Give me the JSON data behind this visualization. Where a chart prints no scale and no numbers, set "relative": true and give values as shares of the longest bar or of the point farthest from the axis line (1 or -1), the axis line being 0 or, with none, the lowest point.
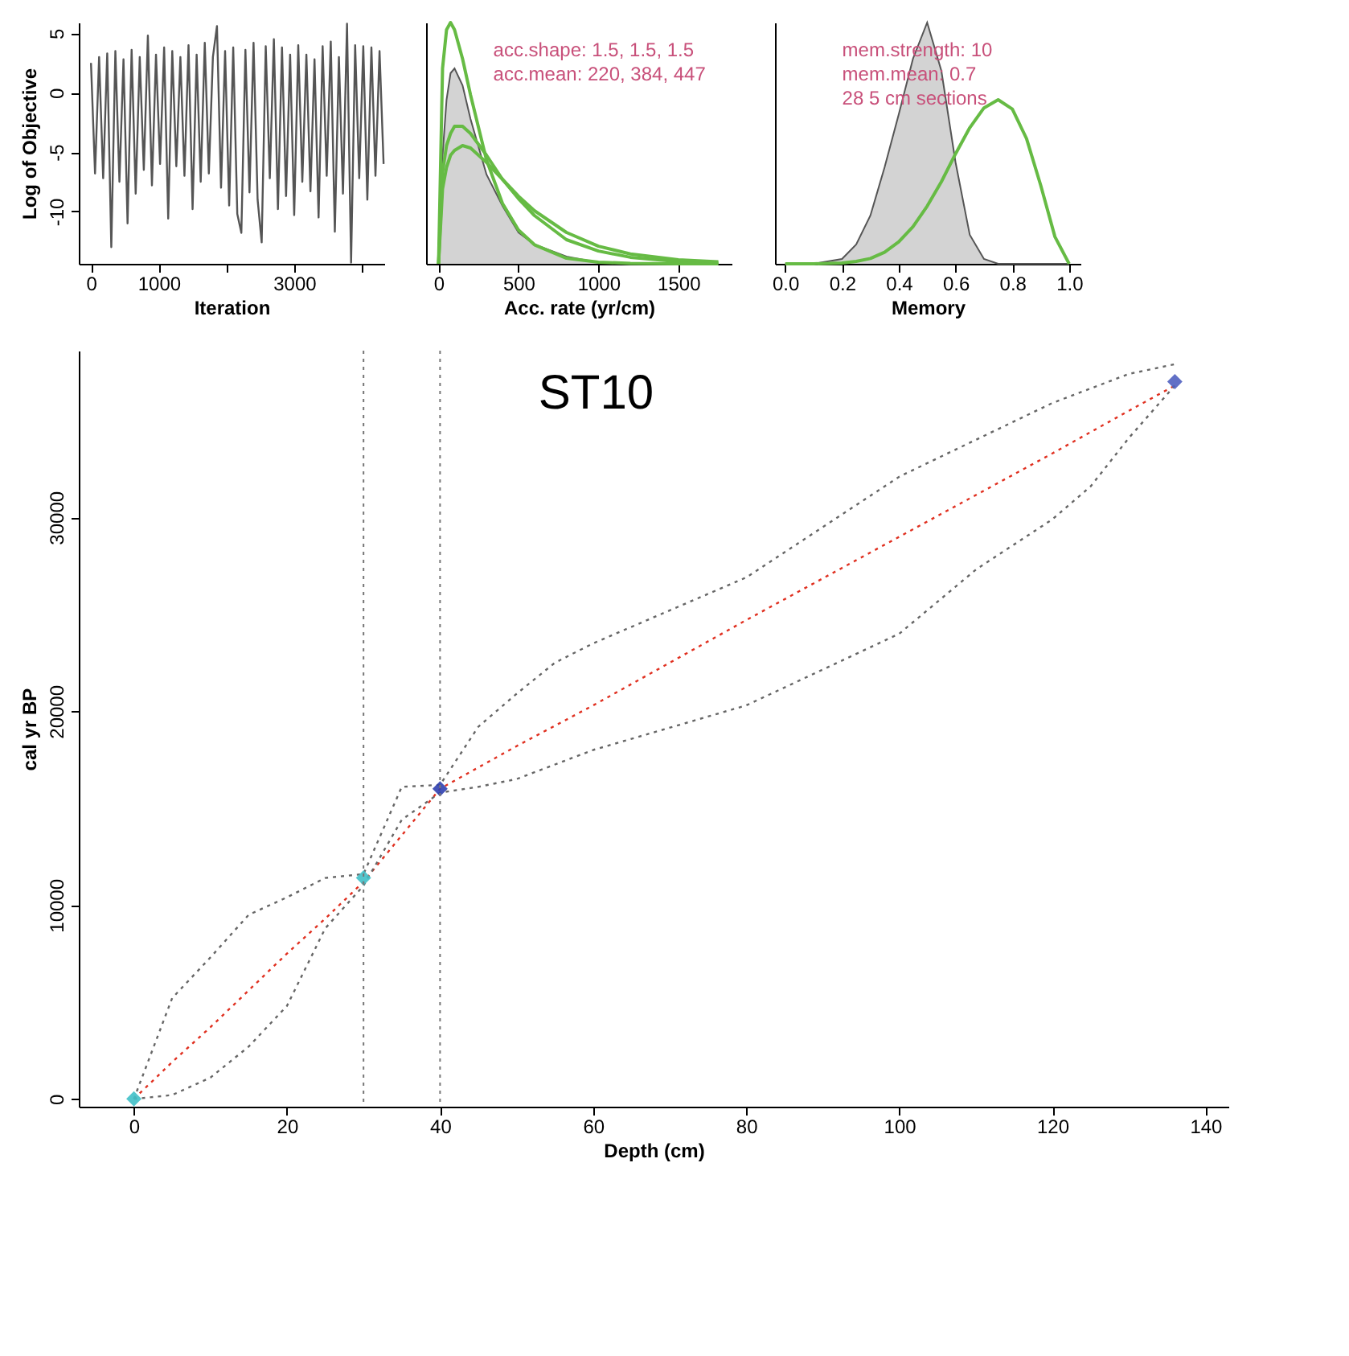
{
  "chart_data": [
    {
      "type": "line",
      "xlabel": "Iteration",
      "ylabel": "Log of Objective",
      "xlim": [
        -180,
        4330
      ],
      "ylim": [
        -14.4,
        5.9
      ],
      "xticks": [
        0,
        1000,
        {
          "value": 2000,
          "label": null
        },
        3000,
        {
          "value": 4000,
          "label": null
        }
      ],
      "yticks": [
        -10,
        -5,
        0,
        5
      ],
      "grid": false,
      "x": [
        0,
        60,
        120,
        180,
        240,
        300,
        360,
        420,
        480,
        540,
        600,
        660,
        720,
        780,
        840,
        900,
        960,
        1020,
        1080,
        1140,
        1200,
        1260,
        1320,
        1380,
        1440,
        1500,
        1560,
        1620,
        1680,
        1740,
        1800,
        1860,
        1920,
        1980,
        2040,
        2100,
        2160,
        2220,
        2280,
        2340,
        2400,
        2460,
        2520,
        2580,
        2640,
        2700,
        2760,
        2820,
        2880,
        2940,
        3000,
        3060,
        3120,
        3180,
        3240,
        3300,
        3360,
        3420,
        3480,
        3540,
        3600,
        3660,
        3720,
        3780,
        3840,
        3900,
        3960,
        4020,
        4080,
        4140,
        4200,
        4260,
        4320
      ],
      "series": [
        {
          "color": "#555555",
          "values": [
            2.5,
            -6.8,
            3.0,
            -7.2,
            3.3,
            -13.0,
            3.5,
            -7.5,
            2.8,
            -11.0,
            3.6,
            -8.5,
            3.0,
            -6.5,
            4.8,
            -7.8,
            3.2,
            -6.0,
            3.8,
            -10.6,
            3.5,
            -6.2,
            3.0,
            -7.0,
            4.0,
            -9.8,
            3.2,
            -7.5,
            4.2,
            -6.8,
            3.0,
            5.6,
            -8.0,
            3.5,
            -9.5,
            3.8,
            -10.2,
            -11.8,
            3.6,
            -8.4,
            4.2,
            -9.0,
            -12.6,
            3.9,
            -7.2,
            4.5,
            -9.8,
            3.8,
            -8.7,
            3.2,
            -10.3,
            4.0,
            -7.5,
            3.2,
            -8.3,
            2.8,
            -10.5,
            3.9,
            -7.0,
            4.3,
            -11.7,
            3.0,
            -8.5,
            5.8,
            -14.3,
            4.0,
            -7.2,
            3.9,
            -9.0,
            3.8,
            -7.0,
            3.5,
            -6.0
          ]
        }
      ]
    },
    {
      "type": "area",
      "relative": true,
      "xlabel": "Acc. rate (yr/cm)",
      "xlim": [
        -78,
        1833
      ],
      "xticks": [
        0,
        500,
        1000,
        1500
      ],
      "grid": false,
      "annotations": [
        "acc.shape:  1.5, 1.5, 1.5",
        "acc.mean:  220, 384, 447"
      ],
      "x": [
        0,
        25,
        50,
        75,
        100,
        150,
        200,
        300,
        400,
        500,
        600,
        800,
        1000,
        1200,
        1500,
        1750
      ],
      "series": [
        {
          "type": "area",
          "color": "#c0c0c0",
          "values": [
            0,
            0.45,
            0.68,
            0.79,
            0.81,
            0.74,
            0.6,
            0.37,
            0.24,
            0.13,
            0.08,
            0.03,
            0.005,
            0,
            0,
            0
          ]
        },
        {
          "type": "line",
          "color": "#66bb44",
          "values": [
            0,
            0.81,
            0.97,
            1.0,
            0.97,
            0.85,
            0.7,
            0.43,
            0.25,
            0.14,
            0.079,
            0.023,
            0.007,
            0.002,
            0,
            0
          ]
        },
        {
          "type": "line",
          "color": "#66bb44",
          "values": [
            0,
            0.38,
            0.49,
            0.54,
            0.57,
            0.57,
            0.54,
            0.45,
            0.35,
            0.27,
            0.2,
            0.1,
            0.053,
            0.027,
            0.009,
            0.004
          ]
        },
        {
          "type": "line",
          "color": "#66bb44",
          "values": [
            0,
            0.31,
            0.4,
            0.45,
            0.47,
            0.49,
            0.48,
            0.42,
            0.35,
            0.28,
            0.22,
            0.13,
            0.073,
            0.041,
            0.017,
            0.008
          ]
        }
      ]
    },
    {
      "type": "area",
      "relative": true,
      "xlabel": "Memory",
      "xlim": [
        -0.036,
        1.04
      ],
      "xticks": [
        {
          "value": 0,
          "label": "0.0"
        },
        {
          "value": 0.2,
          "label": "0.2"
        },
        {
          "value": 0.4,
          "label": "0.4"
        },
        {
          "value": 0.6,
          "label": "0.6"
        },
        {
          "value": 0.8,
          "label": "0.8"
        },
        {
          "value": 1,
          "label": "1.0"
        }
      ],
      "grid": false,
      "annotations": [
        "mem.strength: 10",
        "mem.mean: 0.7",
        "28 5 cm sections"
      ],
      "x": [
        0,
        0.1,
        0.2,
        0.25,
        0.3,
        0.35,
        0.4,
        0.45,
        0.5,
        0.55,
        0.6,
        0.65,
        0.7,
        0.75,
        0.8,
        0.85,
        0.9,
        0.95,
        1.0
      ],
      "series": [
        {
          "type": "area",
          "color": "#c0c0c0",
          "values": [
            0,
            0,
            0.02,
            0.08,
            0.2,
            0.4,
            0.62,
            0.85,
            1.0,
            0.8,
            0.42,
            0.12,
            0.02,
            0,
            0,
            0,
            0,
            0,
            0
          ]
        },
        {
          "type": "line",
          "color": "#66bb44",
          "values": [
            0,
            0,
            0.003,
            0.01,
            0.022,
            0.048,
            0.091,
            0.154,
            0.239,
            0.34,
            0.456,
            0.564,
            0.646,
            0.68,
            0.641,
            0.519,
            0.325,
            0.112,
            0
          ]
        }
      ]
    },
    {
      "type": "line",
      "title": "ST10",
      "xlabel": "Depth (cm)",
      "ylabel": "cal yr BP",
      "xlim": [
        -7.2,
        143
      ],
      "ylim": [
        -400,
        38600
      ],
      "xticks": [
        0,
        20,
        40,
        60,
        80,
        100,
        120,
        140
      ],
      "yticks": [
        0,
        10000,
        20000,
        30000
      ],
      "grid": false,
      "line_style": "dotted",
      "ref_lines": [
        {
          "axis": "x",
          "value": 30,
          "color": "#777777",
          "line_style": "dotted"
        },
        {
          "axis": "x",
          "value": 40,
          "color": "#777777",
          "line_style": "dotted"
        }
      ],
      "series": [
        {
          "type": "line",
          "color": "#e03020",
          "x": [
            0,
            5,
            10,
            15,
            20,
            25,
            30,
            35,
            40,
            45,
            50,
            60,
            80,
            100,
            120,
            130,
            136
          ],
          "values": [
            0,
            1900,
            3700,
            5600,
            7500,
            9300,
            11200,
            13600,
            16000,
            17100,
            18200,
            20300,
            24700,
            29000,
            33300,
            35500,
            36800
          ]
        },
        {
          "type": "line",
          "color": "#666666",
          "x": [
            0,
            5,
            10,
            15,
            20,
            25,
            30,
            35,
            40,
            45,
            50,
            60,
            80,
            100,
            110,
            120,
            125,
            130,
            136
          ],
          "values": [
            0,
            200,
            1100,
            2700,
            4800,
            8800,
            11000,
            14400,
            15800,
            16100,
            16500,
            18000,
            20300,
            24000,
            27300,
            29900,
            31600,
            34100,
            36800
          ]
        },
        {
          "type": "line",
          "color": "#666666",
          "x": [
            0,
            5,
            10,
            15,
            20,
            25,
            30,
            35,
            40,
            45,
            50,
            55,
            60,
            80,
            100,
            120,
            130,
            136
          ],
          "values": [
            0,
            5200,
            7300,
            9500,
            10400,
            11400,
            11600,
            16100,
            16200,
            19200,
            20900,
            22500,
            23500,
            26900,
            32100,
            35900,
            37400,
            37900
          ]
        },
        {
          "type": "scatter",
          "marker": "diamond",
          "x": [
            0,
            30,
            40,
            136
          ],
          "values": [
            0,
            11400,
            16000,
            37000
          ],
          "colors": [
            "#40c0c8",
            "#40c0c8",
            "#3040b0",
            "#5060c0"
          ]
        }
      ]
    }
  ]
}
